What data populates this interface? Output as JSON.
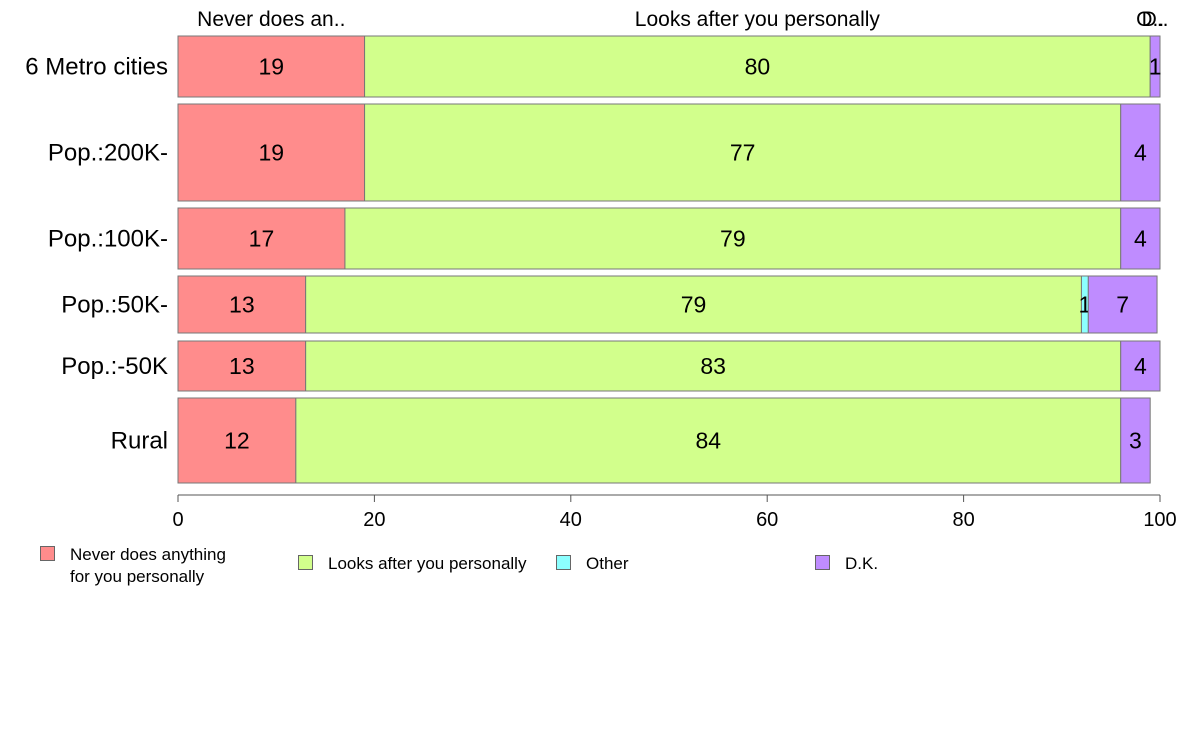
{
  "chart_data": {
    "type": "bar",
    "orientation": "horizontal",
    "stacked": true,
    "categories": [
      "6 Metro cities",
      "Pop.:200K-",
      "Pop.:100K-",
      "Pop.:50K-",
      "Pop.:-50K",
      "Rural"
    ],
    "series": [
      {
        "name": "Never does anything\nfor you personally",
        "top_label": "Never does an..",
        "color": "#FF8C8C",
        "values": [
          19,
          19,
          17,
          13,
          13,
          12
        ],
        "labels": [
          "19",
          "19",
          "17",
          "13",
          "13",
          "12"
        ]
      },
      {
        "name": "Looks after you personally",
        "top_label": "Looks after you personally",
        "color": "#D2FF8C",
        "values": [
          80,
          77,
          79,
          79,
          83,
          84
        ],
        "labels": [
          "80",
          "77",
          "79",
          "79",
          "83",
          "84"
        ]
      },
      {
        "name": "Other",
        "top_label": "O..",
        "color": "#8CFFFF",
        "values": [
          0,
          0,
          0,
          0.7,
          0,
          0
        ],
        "labels": [
          "",
          "",
          "",
          "1",
          "",
          ""
        ]
      },
      {
        "name": "D.K.",
        "top_label": "D..",
        "color": "#BF8CFF",
        "values": [
          1,
          4,
          4,
          7,
          4,
          3
        ],
        "labels": [
          "1",
          "4",
          "4",
          "7",
          "4",
          "3"
        ]
      }
    ],
    "xlim": [
      0,
      100
    ],
    "xticks": [
      "0",
      "20",
      "40",
      "60",
      "80",
      "100"
    ],
    "grid": false,
    "legend_position": "bottom"
  }
}
